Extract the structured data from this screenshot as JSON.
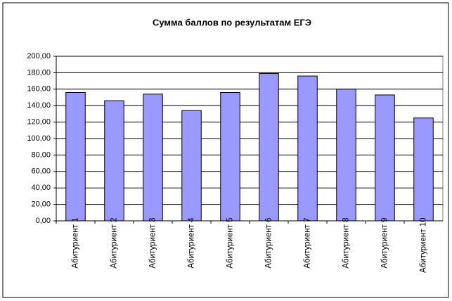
{
  "chart_data": {
    "type": "bar",
    "title": "Сумма баллов по результатам ЕГЭ",
    "categories": [
      "Абитуриент 1",
      "Абитуриент 2",
      "Абитуриент 3",
      "Абитуриент 4",
      "Абитуриент 5",
      "Абитуриент 6",
      "Абитуриент 7",
      "Абитуриент 8",
      "Абитуриент 9",
      "Абитуриент 10"
    ],
    "values": [
      156,
      146,
      154,
      134,
      156,
      179,
      176,
      160,
      153,
      125
    ],
    "color": "#9999ff",
    "ylim": [
      0,
      200
    ],
    "yticks": [
      {
        "value": 0,
        "label": "0,00"
      },
      {
        "value": 20,
        "label": "20,00"
      },
      {
        "value": 40,
        "label": "40,00"
      },
      {
        "value": 60,
        "label": "60,00"
      },
      {
        "value": 80,
        "label": "80,00"
      },
      {
        "value": 100,
        "label": "100,00"
      },
      {
        "value": 120,
        "label": "120,00"
      },
      {
        "value": 140,
        "label": "140,00"
      },
      {
        "value": 160,
        "label": "160,00"
      },
      {
        "value": 180,
        "label": "180,00"
      },
      {
        "value": 200,
        "label": "200,00"
      }
    ],
    "grid": true
  }
}
